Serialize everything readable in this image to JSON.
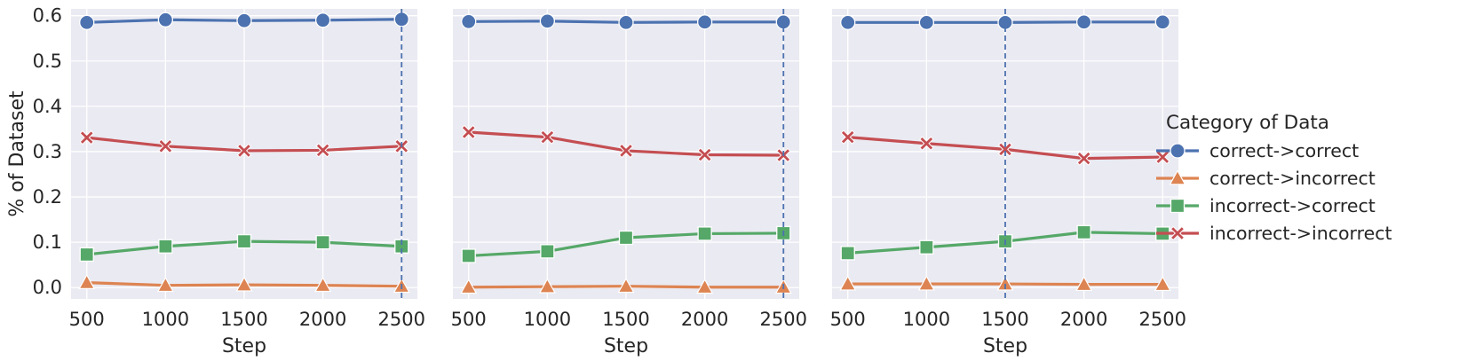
{
  "colors": {
    "panel_bg": "#EAEAF2",
    "grid": "#ffffff",
    "vline": "#4C72B0"
  },
  "chart_data": [
    {
      "type": "line",
      "xlabel": "Step",
      "ylabel": "% of Dataset",
      "x": [
        500,
        1000,
        1500,
        2000,
        2500
      ],
      "xlim": [
        400,
        2600
      ],
      "ylim": [
        -0.025,
        0.615
      ],
      "xticks": [
        "500",
        "1000",
        "1500",
        "2000",
        "2500"
      ],
      "yticks": [
        "0.0",
        "0.1",
        "0.2",
        "0.3",
        "0.4",
        "0.5",
        "0.6"
      ],
      "grid": true,
      "vline_x": 2500,
      "series": [
        {
          "name": "correct->correct",
          "color": "#4C72B0",
          "marker": "circle",
          "values": [
            0.585,
            0.591,
            0.589,
            0.59,
            0.592
          ]
        },
        {
          "name": "correct->incorrect",
          "color": "#DD8452",
          "marker": "triangle",
          "values": [
            0.011,
            0.005,
            0.006,
            0.005,
            0.003
          ]
        },
        {
          "name": "incorrect->correct",
          "color": "#55A868",
          "marker": "square",
          "values": [
            0.073,
            0.091,
            0.102,
            0.1,
            0.091
          ]
        },
        {
          "name": "incorrect->incorrect",
          "color": "#C44E52",
          "marker": "x",
          "values": [
            0.331,
            0.312,
            0.302,
            0.303,
            0.312
          ]
        }
      ]
    },
    {
      "type": "line",
      "xlabel": "Step",
      "ylabel": "",
      "x": [
        500,
        1000,
        1500,
        2000,
        2500
      ],
      "xlim": [
        400,
        2600
      ],
      "ylim": [
        -0.025,
        0.615
      ],
      "xticks": [
        "500",
        "1000",
        "1500",
        "2000",
        "2500"
      ],
      "yticks": [],
      "grid": true,
      "vline_x": 2500,
      "series": [
        {
          "name": "correct->correct",
          "color": "#4C72B0",
          "marker": "circle",
          "values": [
            0.587,
            0.588,
            0.585,
            0.586,
            0.586
          ]
        },
        {
          "name": "correct->incorrect",
          "color": "#DD8452",
          "marker": "triangle",
          "values": [
            0.001,
            0.002,
            0.003,
            0.001,
            0.001
          ]
        },
        {
          "name": "incorrect->correct",
          "color": "#55A868",
          "marker": "square",
          "values": [
            0.07,
            0.08,
            0.11,
            0.119,
            0.12
          ]
        },
        {
          "name": "incorrect->incorrect",
          "color": "#C44E52",
          "marker": "x",
          "values": [
            0.343,
            0.332,
            0.302,
            0.293,
            0.292
          ]
        }
      ]
    },
    {
      "type": "line",
      "xlabel": "Step",
      "ylabel": "",
      "x": [
        500,
        1000,
        1500,
        2000,
        2500
      ],
      "xlim": [
        400,
        2600
      ],
      "ylim": [
        -0.025,
        0.615
      ],
      "xticks": [
        "500",
        "1000",
        "1500",
        "2000",
        "2500"
      ],
      "yticks": [],
      "grid": true,
      "vline_x": 1500,
      "series": [
        {
          "name": "correct->correct",
          "color": "#4C72B0",
          "marker": "circle",
          "values": [
            0.585,
            0.585,
            0.585,
            0.586,
            0.586
          ]
        },
        {
          "name": "correct->incorrect",
          "color": "#DD8452",
          "marker": "triangle",
          "values": [
            0.008,
            0.008,
            0.008,
            0.007,
            0.007
          ]
        },
        {
          "name": "incorrect->correct",
          "color": "#55A868",
          "marker": "square",
          "values": [
            0.076,
            0.089,
            0.102,
            0.122,
            0.119
          ]
        },
        {
          "name": "incorrect->incorrect",
          "color": "#C44E52",
          "marker": "x",
          "values": [
            0.332,
            0.318,
            0.305,
            0.285,
            0.288
          ]
        }
      ]
    }
  ],
  "legend": {
    "title": "Category of Data",
    "placement": "right",
    "items": [
      {
        "label": "correct->correct",
        "color": "#4C72B0",
        "marker": "circle"
      },
      {
        "label": "correct->incorrect",
        "color": "#DD8452",
        "marker": "triangle"
      },
      {
        "label": "incorrect->correct",
        "color": "#55A868",
        "marker": "square"
      },
      {
        "label": "incorrect->incorrect",
        "color": "#C44E52",
        "marker": "x"
      }
    ]
  }
}
